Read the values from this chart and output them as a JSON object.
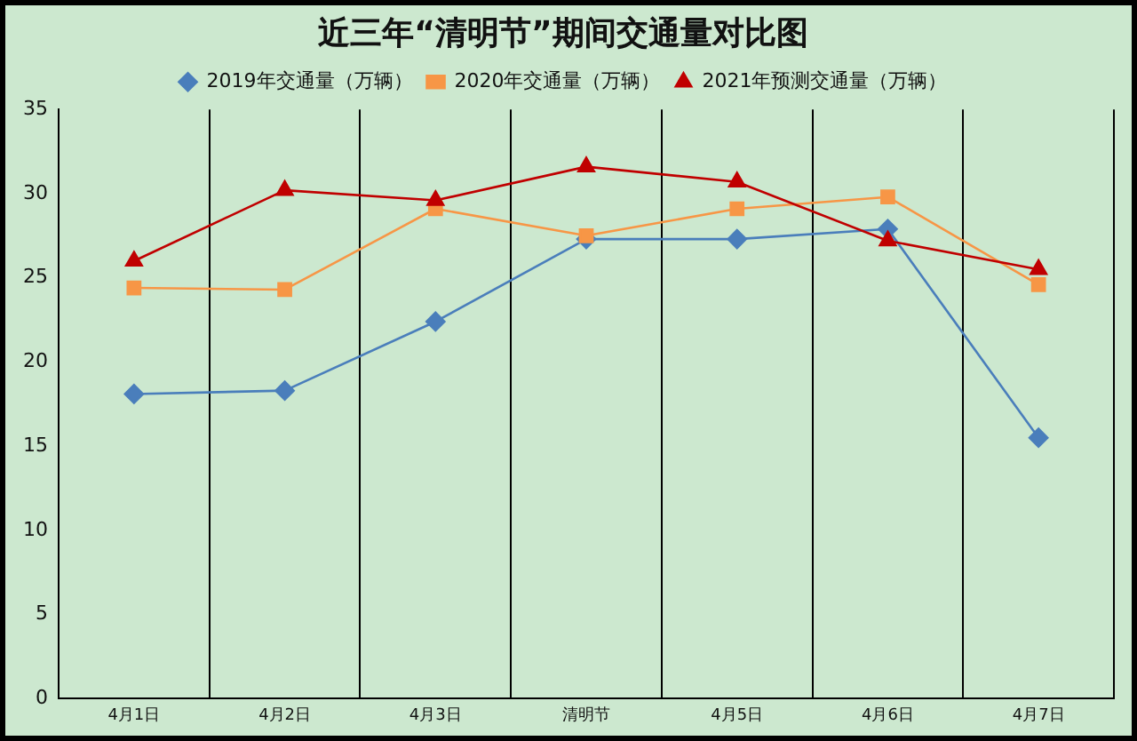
{
  "chart_data": {
    "type": "line",
    "title": "近三年“清明节”期间交通量对比图",
    "categories": [
      "4月1日",
      "4月2日",
      "4月3日",
      "清明节",
      "4月5日",
      "4月6日",
      "4月7日"
    ],
    "series": [
      {
        "name": "2019年交通量（万辆）",
        "color": "#4a7ebb",
        "marker": "diamond",
        "values": [
          18.1,
          18.3,
          22.4,
          27.3,
          27.3,
          27.9,
          15.5
        ]
      },
      {
        "name": "2020年交通量（万辆）",
        "color": "#f79646",
        "marker": "square",
        "values": [
          24.4,
          24.3,
          29.1,
          27.5,
          29.1,
          29.8,
          24.6
        ]
      },
      {
        "name": "2021年预测交通量（万辆）",
        "color": "#c00000",
        "marker": "triangle",
        "values": [
          26.0,
          30.2,
          29.6,
          31.6,
          30.7,
          27.2,
          25.5
        ]
      }
    ],
    "ylim": [
      0,
      35
    ],
    "yticks": [
      0,
      5,
      10,
      15,
      20,
      25,
      30,
      35
    ],
    "grid": "x",
    "legend": "top",
    "line_style": "solid"
  }
}
